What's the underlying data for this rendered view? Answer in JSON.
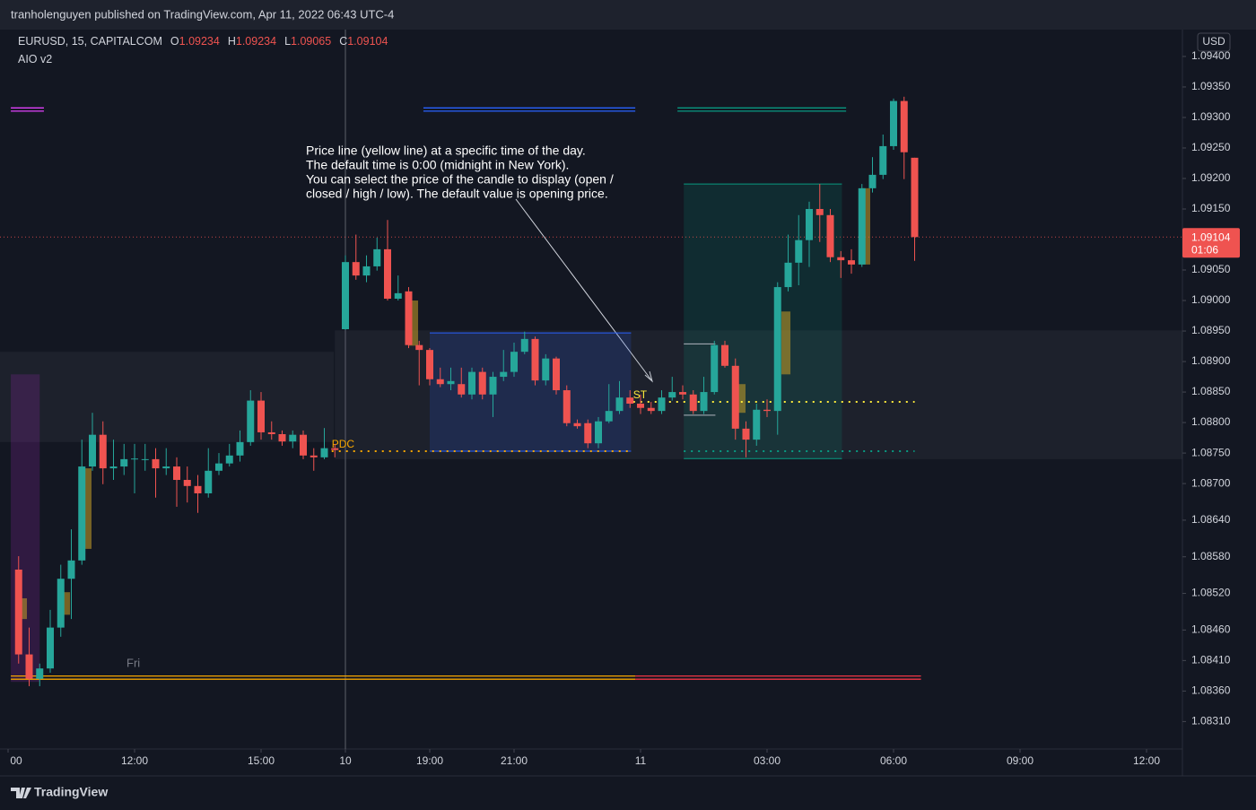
{
  "header": {
    "publisher": "tranholenguyen published on TradingView.com, Apr 11, 2022 06:43 UTC-4"
  },
  "footer": {
    "brand": "TradingView"
  },
  "chart_data": {
    "type": "candlestick",
    "symbol": "EURUSD, 15, CAPITALCOM",
    "ohlc": [
      {
        "label": "O",
        "value": 1.09234
      },
      {
        "label": "H",
        "value": 1.09234
      },
      {
        "label": "L",
        "value": 1.09065
      },
      {
        "label": "C",
        "value": 1.09104
      }
    ],
    "indicator": "AIO v2",
    "currency": "USD",
    "last_price": 1.09104,
    "countdown": "01:06",
    "annotation": [
      "Price line (yellow line) at a specific time of the day.",
      "The default time is 0:00 (midnight in New York).",
      "You can select the price of the candle to display (open /",
      "closed / high / low). The default value is opening price."
    ],
    "day_label": "Fri",
    "up_color": "#26a69a",
    "down_color": "#ef5350",
    "x": [
      1,
      2,
      3,
      4,
      5,
      6,
      7,
      8,
      9,
      10,
      11,
      12,
      13,
      14,
      15,
      16,
      17,
      18,
      19,
      20,
      21,
      22,
      23,
      24,
      25,
      26,
      27,
      28,
      29,
      30,
      31,
      32,
      33,
      34,
      35,
      36,
      37,
      38,
      39,
      40,
      41,
      42,
      43,
      44,
      45,
      46,
      47,
      48,
      49,
      50,
      51,
      52,
      53,
      54,
      55,
      56,
      57,
      58,
      59,
      60,
      61,
      62,
      63,
      64,
      65,
      66,
      67,
      68,
      69,
      70,
      71,
      72,
      73,
      74,
      75,
      76,
      77,
      78,
      79,
      80,
      81,
      82,
      83,
      84,
      85,
      86
    ],
    "open": [
      1.08559,
      1.0842,
      1.0838,
      1.08397,
      1.08464,
      1.08544,
      1.08574,
      1.08728,
      1.0878,
      1.08725,
      1.08728,
      1.0874,
      1.0874,
      1.0874,
      1.08725,
      1.08728,
      1.08706,
      1.08696,
      1.08684,
      1.08721,
      1.08733,
      1.08746,
      1.08768,
      1.08836,
      1.08784,
      1.08781,
      1.08769,
      1.0878,
      1.08746,
      1.08743,
      1.08758,
      1.08953,
      1.09063,
      1.09041,
      1.09056,
      1.09084,
      1.09003,
      1.09015,
      1.08927,
      1.08919,
      1.08871,
      1.08863,
      1.08863,
      1.08846,
      1.08883,
      1.08846,
      1.08875,
      1.08883,
      1.08916,
      1.08937,
      1.08869,
      1.08905,
      1.08853,
      1.08799,
      1.08799,
      1.08766,
      1.08802,
      1.08819,
      1.08841,
      1.08831,
      1.08824,
      1.08819,
      1.08841,
      1.0885,
      1.08846,
      1.08819,
      1.0885,
      1.08927,
      1.08893,
      1.0879,
      1.08772,
      1.08821,
      1.08819,
      1.09022,
      1.09062,
      1.09099,
      1.0915,
      1.0914,
      1.09071,
      1.09066,
      1.09059,
      1.09184,
      1.09206,
      1.09253,
      1.09327,
      1.09234
    ],
    "high": [
      1.08581,
      1.08464,
      1.08405,
      1.08493,
      1.08567,
      1.08625,
      1.08772,
      1.08816,
      1.08802,
      1.08772,
      1.08765,
      1.08765,
      1.08765,
      1.08758,
      1.08758,
      1.08743,
      1.08728,
      1.08714,
      1.08758,
      1.0875,
      1.08765,
      1.08787,
      1.08853,
      1.0885,
      1.08802,
      1.08787,
      1.08787,
      1.08787,
      1.08758,
      1.08791,
      1.08765,
      1.09074,
      1.09108,
      1.09074,
      1.09103,
      1.09132,
      1.09041,
      1.09022,
      1.08934,
      1.08922,
      1.0889,
      1.0889,
      1.0889,
      1.0889,
      1.0889,
      1.08883,
      1.08919,
      1.08931,
      1.08949,
      1.08941,
      1.08912,
      1.08908,
      1.08861,
      1.08805,
      1.08805,
      1.08809,
      1.08863,
      1.08868,
      1.08853,
      1.08846,
      1.08834,
      1.08853,
      1.08875,
      1.08861,
      1.08853,
      1.08875,
      1.08934,
      1.08934,
      1.08905,
      1.08802,
      1.08831,
      1.08838,
      1.0903,
      1.09108,
      1.0914,
      1.09162,
      1.09191,
      1.0915,
      1.09081,
      1.09084,
      1.09191,
      1.09235,
      1.09272,
      1.09331,
      1.09334,
      1.09234
    ],
    "low": [
      1.08405,
      1.08368,
      1.08368,
      1.0839,
      1.08449,
      1.08478,
      1.08567,
      1.08721,
      1.08699,
      1.08706,
      1.08714,
      1.08684,
      1.08721,
      1.08677,
      1.08714,
      1.08662,
      1.08669,
      1.08652,
      1.08677,
      1.08714,
      1.08728,
      1.08736,
      1.08762,
      1.08772,
      1.08772,
      1.08762,
      1.08758,
      1.0874,
      1.08721,
      1.0874,
      1.08743,
      1.08952,
      1.09034,
      1.0903,
      1.09049,
      1.09,
      1.09,
      1.08922,
      1.08861,
      1.08861,
      1.08858,
      1.08853,
      1.08841,
      1.08838,
      1.08838,
      1.08809,
      1.08868,
      1.08875,
      1.08912,
      1.08861,
      1.08861,
      1.08846,
      1.08794,
      1.0879,
      1.08758,
      1.08758,
      1.08799,
      1.08814,
      1.08824,
      1.08814,
      1.08814,
      1.08814,
      1.08836,
      1.08838,
      1.08814,
      1.08814,
      1.08846,
      1.0889,
      1.08772,
      1.08743,
      1.08762,
      1.08809,
      1.0878,
      1.09015,
      1.09025,
      1.09055,
      1.09096,
      1.09063,
      1.09037,
      1.09044,
      1.09055,
      1.09177,
      1.09199,
      1.09247,
      1.09199,
      1.09065
    ],
    "close": [
      1.0842,
      1.0838,
      1.08397,
      1.08464,
      1.08544,
      1.08574,
      1.08728,
      1.0878,
      1.08725,
      1.08728,
      1.0874,
      1.08741,
      1.0874,
      1.08725,
      1.08728,
      1.08706,
      1.08696,
      1.08684,
      1.08721,
      1.08733,
      1.08746,
      1.08768,
      1.08836,
      1.08784,
      1.08781,
      1.08769,
      1.0878,
      1.08746,
      1.08743,
      1.08758,
      1.08755,
      1.09063,
      1.09041,
      1.09056,
      1.09084,
      1.09003,
      1.09012,
      1.08927,
      1.08919,
      1.08871,
      1.08863,
      1.08868,
      1.08846,
      1.08883,
      1.08846,
      1.08875,
      1.08883,
      1.08916,
      1.08937,
      1.08869,
      1.08905,
      1.08853,
      1.08799,
      1.08794,
      1.08766,
      1.08802,
      1.08819,
      1.08841,
      1.08831,
      1.08824,
      1.08819,
      1.08841,
      1.0885,
      1.08846,
      1.08819,
      1.0885,
      1.08927,
      1.08893,
      1.0879,
      1.08772,
      1.08821,
      1.08819,
      1.09022,
      1.09062,
      1.09099,
      1.0915,
      1.0914,
      1.09071,
      1.09066,
      1.09059,
      1.09184,
      1.09206,
      1.09253,
      1.09327,
      1.09243,
      1.09104
    ],
    "xlim": [
      -0.766,
      111.404
    ],
    "ylim": [
      1.08265,
      1.09444
    ],
    "xticks": [
      {
        "value": 0,
        "label": "00"
      },
      {
        "value": 12,
        "label": "12:00"
      },
      {
        "value": 24,
        "label": "15:00"
      },
      {
        "value": 32,
        "label": "10"
      },
      {
        "value": 40,
        "label": "19:00"
      },
      {
        "value": 48,
        "label": "21:00"
      },
      {
        "value": 60,
        "label": "11"
      },
      {
        "value": 72,
        "label": "03:00"
      },
      {
        "value": 84,
        "label": "06:00"
      },
      {
        "value": 96,
        "label": "09:00"
      },
      {
        "value": 108,
        "label": "12:00"
      }
    ],
    "yticks": [
      {
        "value": 1.094,
        "label": "1.09400"
      },
      {
        "value": 1.0935,
        "label": "1.09350"
      },
      {
        "value": 1.093,
        "label": "1.09300"
      },
      {
        "value": 1.0925,
        "label": "1.09250"
      },
      {
        "value": 1.092,
        "label": "1.09200"
      },
      {
        "value": 1.0915,
        "label": "1.09150"
      },
      {
        "value": 1.0905,
        "label": "1.09050"
      },
      {
        "value": 1.09,
        "label": "1.09000"
      },
      {
        "value": 1.0895,
        "label": "1.08950"
      },
      {
        "value": 1.089,
        "label": "1.08900"
      },
      {
        "value": 1.0885,
        "label": "1.08850"
      },
      {
        "value": 1.088,
        "label": "1.08800"
      },
      {
        "value": 1.0875,
        "label": "1.08750"
      },
      {
        "value": 1.087,
        "label": "1.08700"
      },
      {
        "value": 1.0864,
        "label": "1.08640"
      },
      {
        "value": 1.0858,
        "label": "1.08580"
      },
      {
        "value": 1.0852,
        "label": "1.08520"
      },
      {
        "value": 1.0846,
        "label": "1.08460"
      },
      {
        "value": 1.0841,
        "label": "1.08410"
      },
      {
        "value": 1.0836,
        "label": "1.08360"
      },
      {
        "value": 1.0831,
        "label": "1.08310"
      }
    ],
    "session_separator": 32,
    "zones": [
      {
        "x": [
          -0.766,
          30.9
        ],
        "y": [
          1.08768,
          1.08916
        ],
        "color": "rgba(120,123,134,0.10)"
      },
      {
        "x": [
          31.0,
          111.404
        ],
        "y": [
          1.0874,
          1.08951
        ],
        "color": "rgba(120,123,134,0.10)"
      },
      {
        "x": [
          0.26,
          3.0
        ],
        "y": [
          1.08375,
          1.08879
        ],
        "color": "rgba(156,39,176,0.22)"
      },
      {
        "x": [
          40.0,
          59.1
        ],
        "y": [
          1.08753,
          1.08947
        ],
        "color": "rgba(41,98,255,0.16)",
        "border": "#2962ff"
      },
      {
        "x": [
          64.1,
          79.1
        ],
        "y": [
          1.08741,
          1.09191
        ],
        "color": "rgba(8,153,129,0.16)",
        "border": "#089981"
      },
      {
        "x": [
          64.1,
          67.1
        ],
        "y": [
          1.08812,
          1.08929
        ],
        "color": "rgba(0,0,0,0)",
        "border": "#b2b5be"
      }
    ],
    "highlights": [
      {
        "x": 1.36,
        "y": [
          1.08478,
          1.08512
        ]
      },
      {
        "x": 5.45,
        "y": [
          1.08485,
          1.08522
        ]
      },
      {
        "x": 7.49,
        "y": [
          1.08593,
          1.08725
        ]
      },
      {
        "x": 38.47,
        "y": [
          1.08926,
          1.09
        ]
      },
      {
        "x": 69.53,
        "y": [
          1.08816,
          1.08863
        ]
      },
      {
        "x": 73.79,
        "y": [
          1.08879,
          1.08982
        ]
      },
      {
        "x": 81.36,
        "y": [
          1.09059,
          1.09184
        ]
      }
    ],
    "levels": [
      {
        "price": 1.09313,
        "x": [
          0.26,
          3.4
        ],
        "color": "#e040fb",
        "style": "double"
      },
      {
        "price": 1.09313,
        "x": [
          39.4,
          59.5
        ],
        "color": "#2962ff",
        "style": "double"
      },
      {
        "price": 1.09313,
        "x": [
          63.5,
          79.5
        ],
        "color": "#089981",
        "style": "double"
      },
      {
        "price": 1.08382,
        "x": [
          0.26,
          59.5
        ],
        "color": "#f7a600",
        "style": "double"
      },
      {
        "price": 1.08382,
        "x": [
          59.5,
          86.6
        ],
        "color": "#f23645",
        "style": "double"
      },
      {
        "price": 1.08834,
        "x": [
          59.3,
          86.0
        ],
        "color": "#ffeb3b",
        "style": "dotted",
        "label": "ST"
      },
      {
        "price": 1.08753,
        "x": [
          30.7,
          59.2
        ],
        "color": "#f7a600",
        "style": "dotted",
        "label": "PDC"
      },
      {
        "price": 1.08753,
        "x": [
          64.1,
          86.0
        ],
        "color": "#089981",
        "style": "dotted"
      }
    ]
  }
}
